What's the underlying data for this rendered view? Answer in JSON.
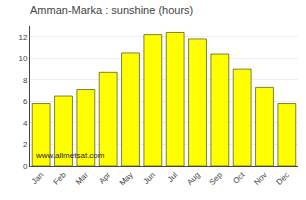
{
  "chart_data": {
    "type": "bar",
    "title": "Amman-Marka : sunshine (hours)",
    "categories": [
      "Jan",
      "Feb",
      "Mar",
      "Apr",
      "May",
      "Jun",
      "Jul",
      "Aug",
      "Sep",
      "Oct",
      "Nov",
      "Dec"
    ],
    "values": [
      5.8,
      6.5,
      7.1,
      8.7,
      10.5,
      12.2,
      12.4,
      11.8,
      10.4,
      9.0,
      7.3,
      5.8
    ],
    "color": "#FFFF00",
    "ylim": [
      0,
      13
    ],
    "yticks": [
      0,
      2,
      4,
      6,
      8,
      10,
      12
    ],
    "grid": true,
    "annotations": [
      "www.allmetsat.com"
    ]
  }
}
